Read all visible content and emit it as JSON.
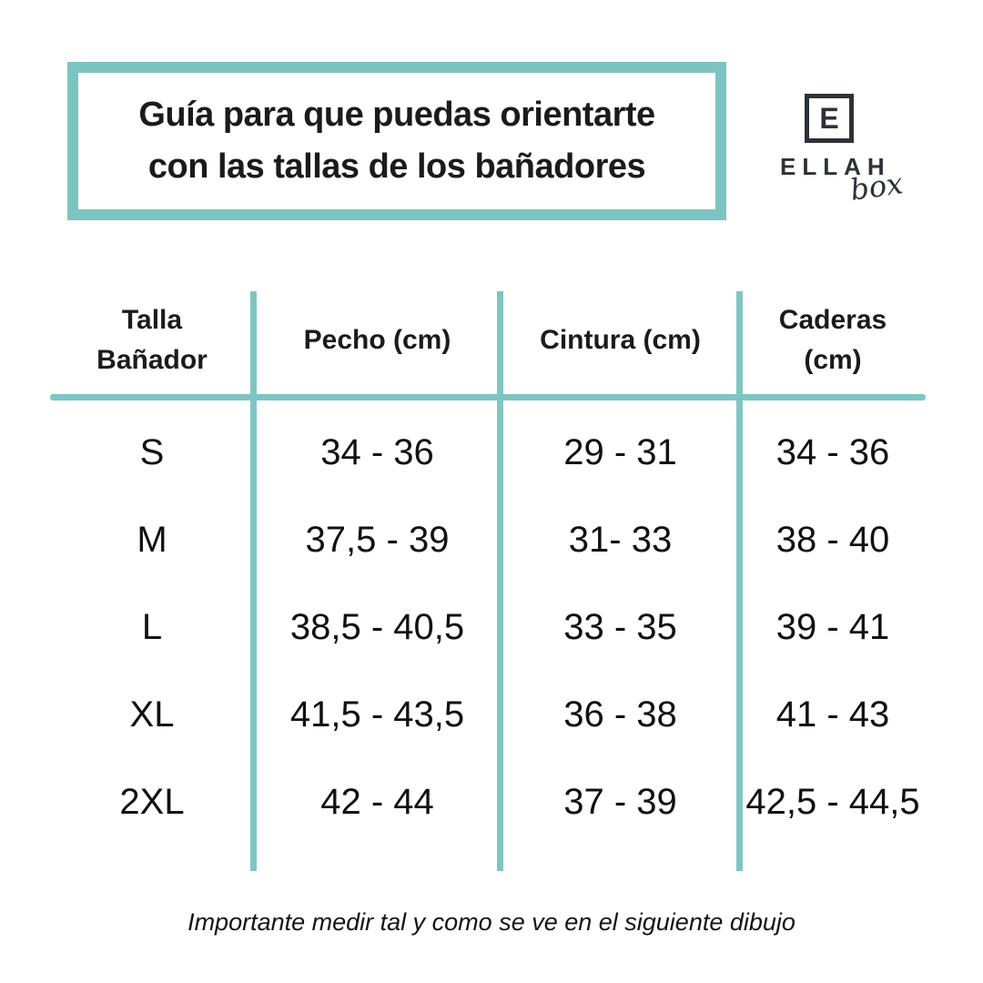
{
  "title": {
    "text": "Guía para que puedas orientarte\ncon las tallas de los bañadores"
  },
  "logo": {
    "monogram": "E",
    "brand": "ELLAH",
    "sub": "box"
  },
  "table": {
    "headers": [
      "Talla\nBañador",
      "Pecho (cm)",
      "Cintura (cm)",
      "Caderas\n(cm)"
    ],
    "rows": [
      {
        "size": "S",
        "pecho": "34 - 36",
        "cintura": "29 - 31",
        "caderas": "34 - 36"
      },
      {
        "size": "M",
        "pecho": "37,5 - 39",
        "cintura": "31- 33",
        "caderas": "38 - 40"
      },
      {
        "size": "L",
        "pecho": "38,5 - 40,5",
        "cintura": "33 - 35",
        "caderas": "39 - 41"
      },
      {
        "size": "XL",
        "pecho": "41,5 - 43,5",
        "cintura": "36 - 38",
        "caderas": "41 - 43"
      },
      {
        "size": "2XL",
        "pecho": "42 - 44",
        "cintura": "37 - 39",
        "caderas": "42,5 - 44,5"
      }
    ]
  },
  "footer": {
    "note": "Importante medir tal y como se ve en el siguiente dibujo"
  },
  "colors": {
    "accent_teal": "#7cc4c2",
    "logo_dark": "#2e3238",
    "text": "#111111"
  }
}
